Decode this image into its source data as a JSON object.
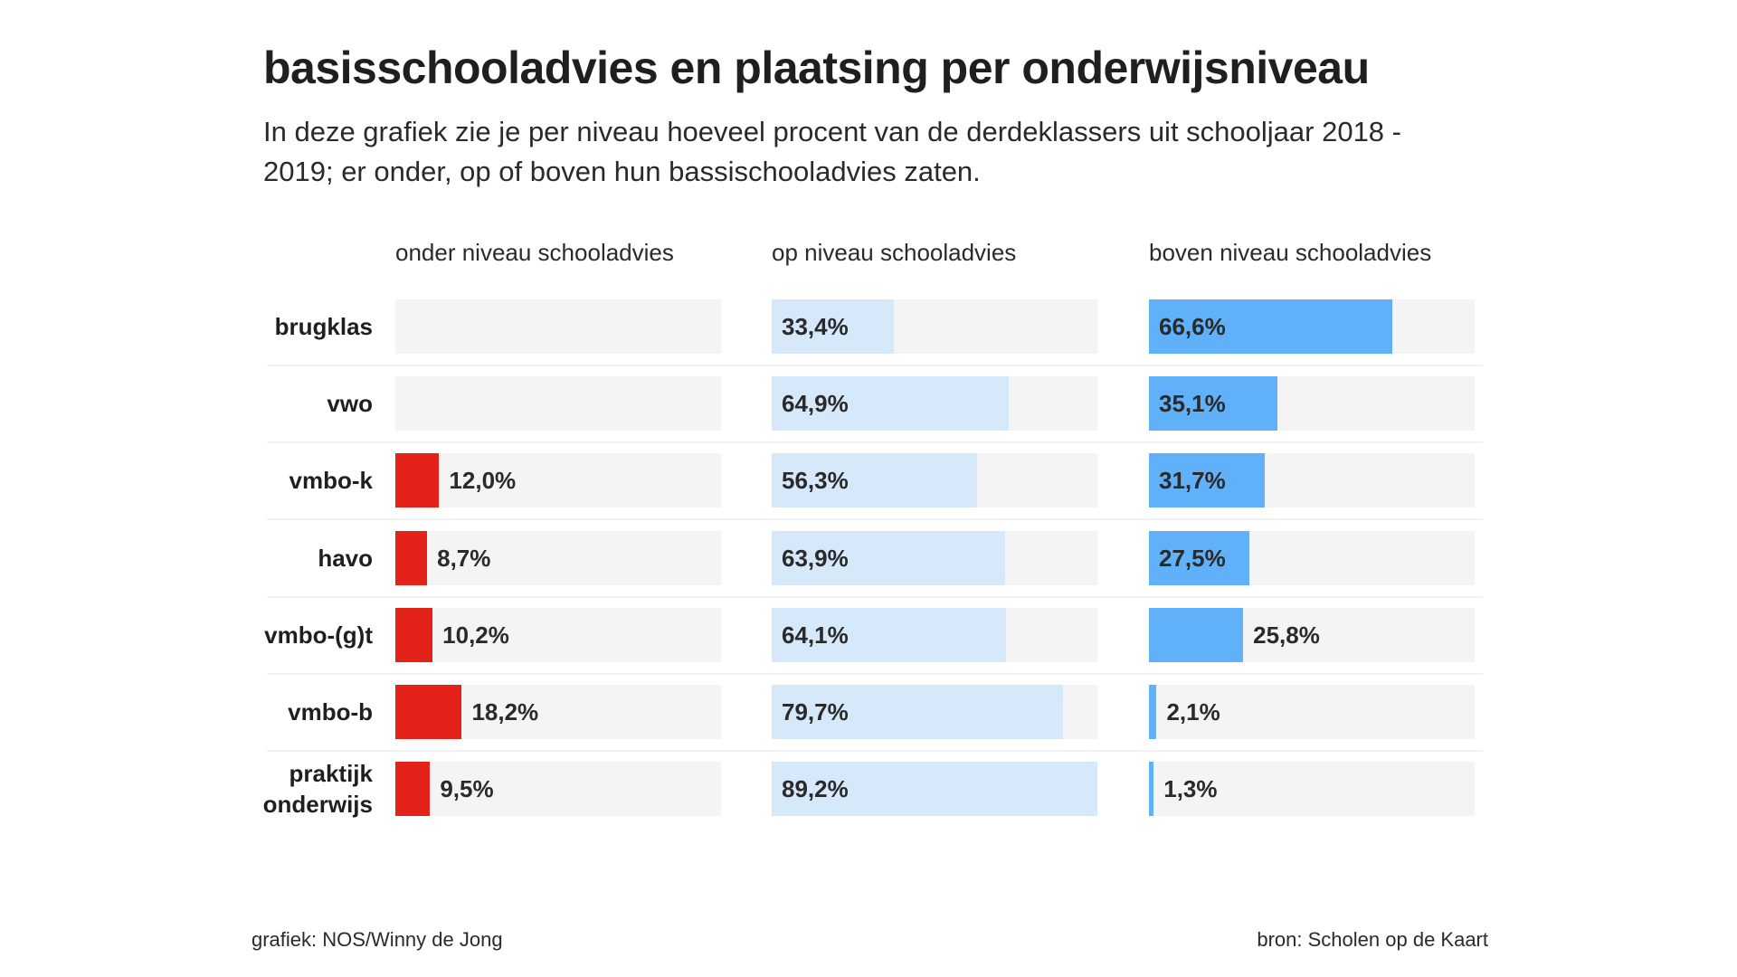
{
  "title": "basisschooladvies en plaatsing per onderwijsniveau",
  "subtitle": "In deze grafiek zie je per niveau hoeveel procent van de derdeklassers uit schooljaar 2018 - 2019; er onder, op of boven hun bassischooladvies zaten.",
  "footer": {
    "credit": "grafiek: NOS/Winny de Jong",
    "source": "bron: Scholen op de Kaart"
  },
  "colors": {
    "onder": "#e3231a",
    "op": "#d6e9fb",
    "boven": "#60b0fa",
    "track": "#f4f4f4"
  },
  "chart_data": {
    "type": "bar",
    "title": "basisschooladvies en plaatsing per onderwijsniveau",
    "xmax": 89.2,
    "categories": [
      "brugklas",
      "vwo",
      "vmbo-k",
      "havo",
      "vmbo-(g)t",
      "vmbo-b",
      "praktijk onderwijs"
    ],
    "series": [
      {
        "name": "onder niveau schooladvies",
        "values": [
          null,
          null,
          12.0,
          8.7,
          10.2,
          18.2,
          9.5
        ],
        "labels": [
          "",
          "",
          "12,0%",
          "8,7%",
          "10,2%",
          "18,2%",
          "9,5%"
        ]
      },
      {
        "name": "op niveau schooladvies",
        "values": [
          33.4,
          64.9,
          56.3,
          63.9,
          64.1,
          79.7,
          89.2
        ],
        "labels": [
          "33,4%",
          "64,9%",
          "56,3%",
          "63,9%",
          "64,1%",
          "79,7%",
          "89,2%"
        ]
      },
      {
        "name": "boven niveau schooladvies",
        "values": [
          66.6,
          35.1,
          31.7,
          27.5,
          25.8,
          2.1,
          1.3
        ],
        "labels": [
          "66,6%",
          "35,1%",
          "31,7%",
          "27,5%",
          "25,8%",
          "2,1%",
          "1,3%"
        ]
      }
    ]
  }
}
